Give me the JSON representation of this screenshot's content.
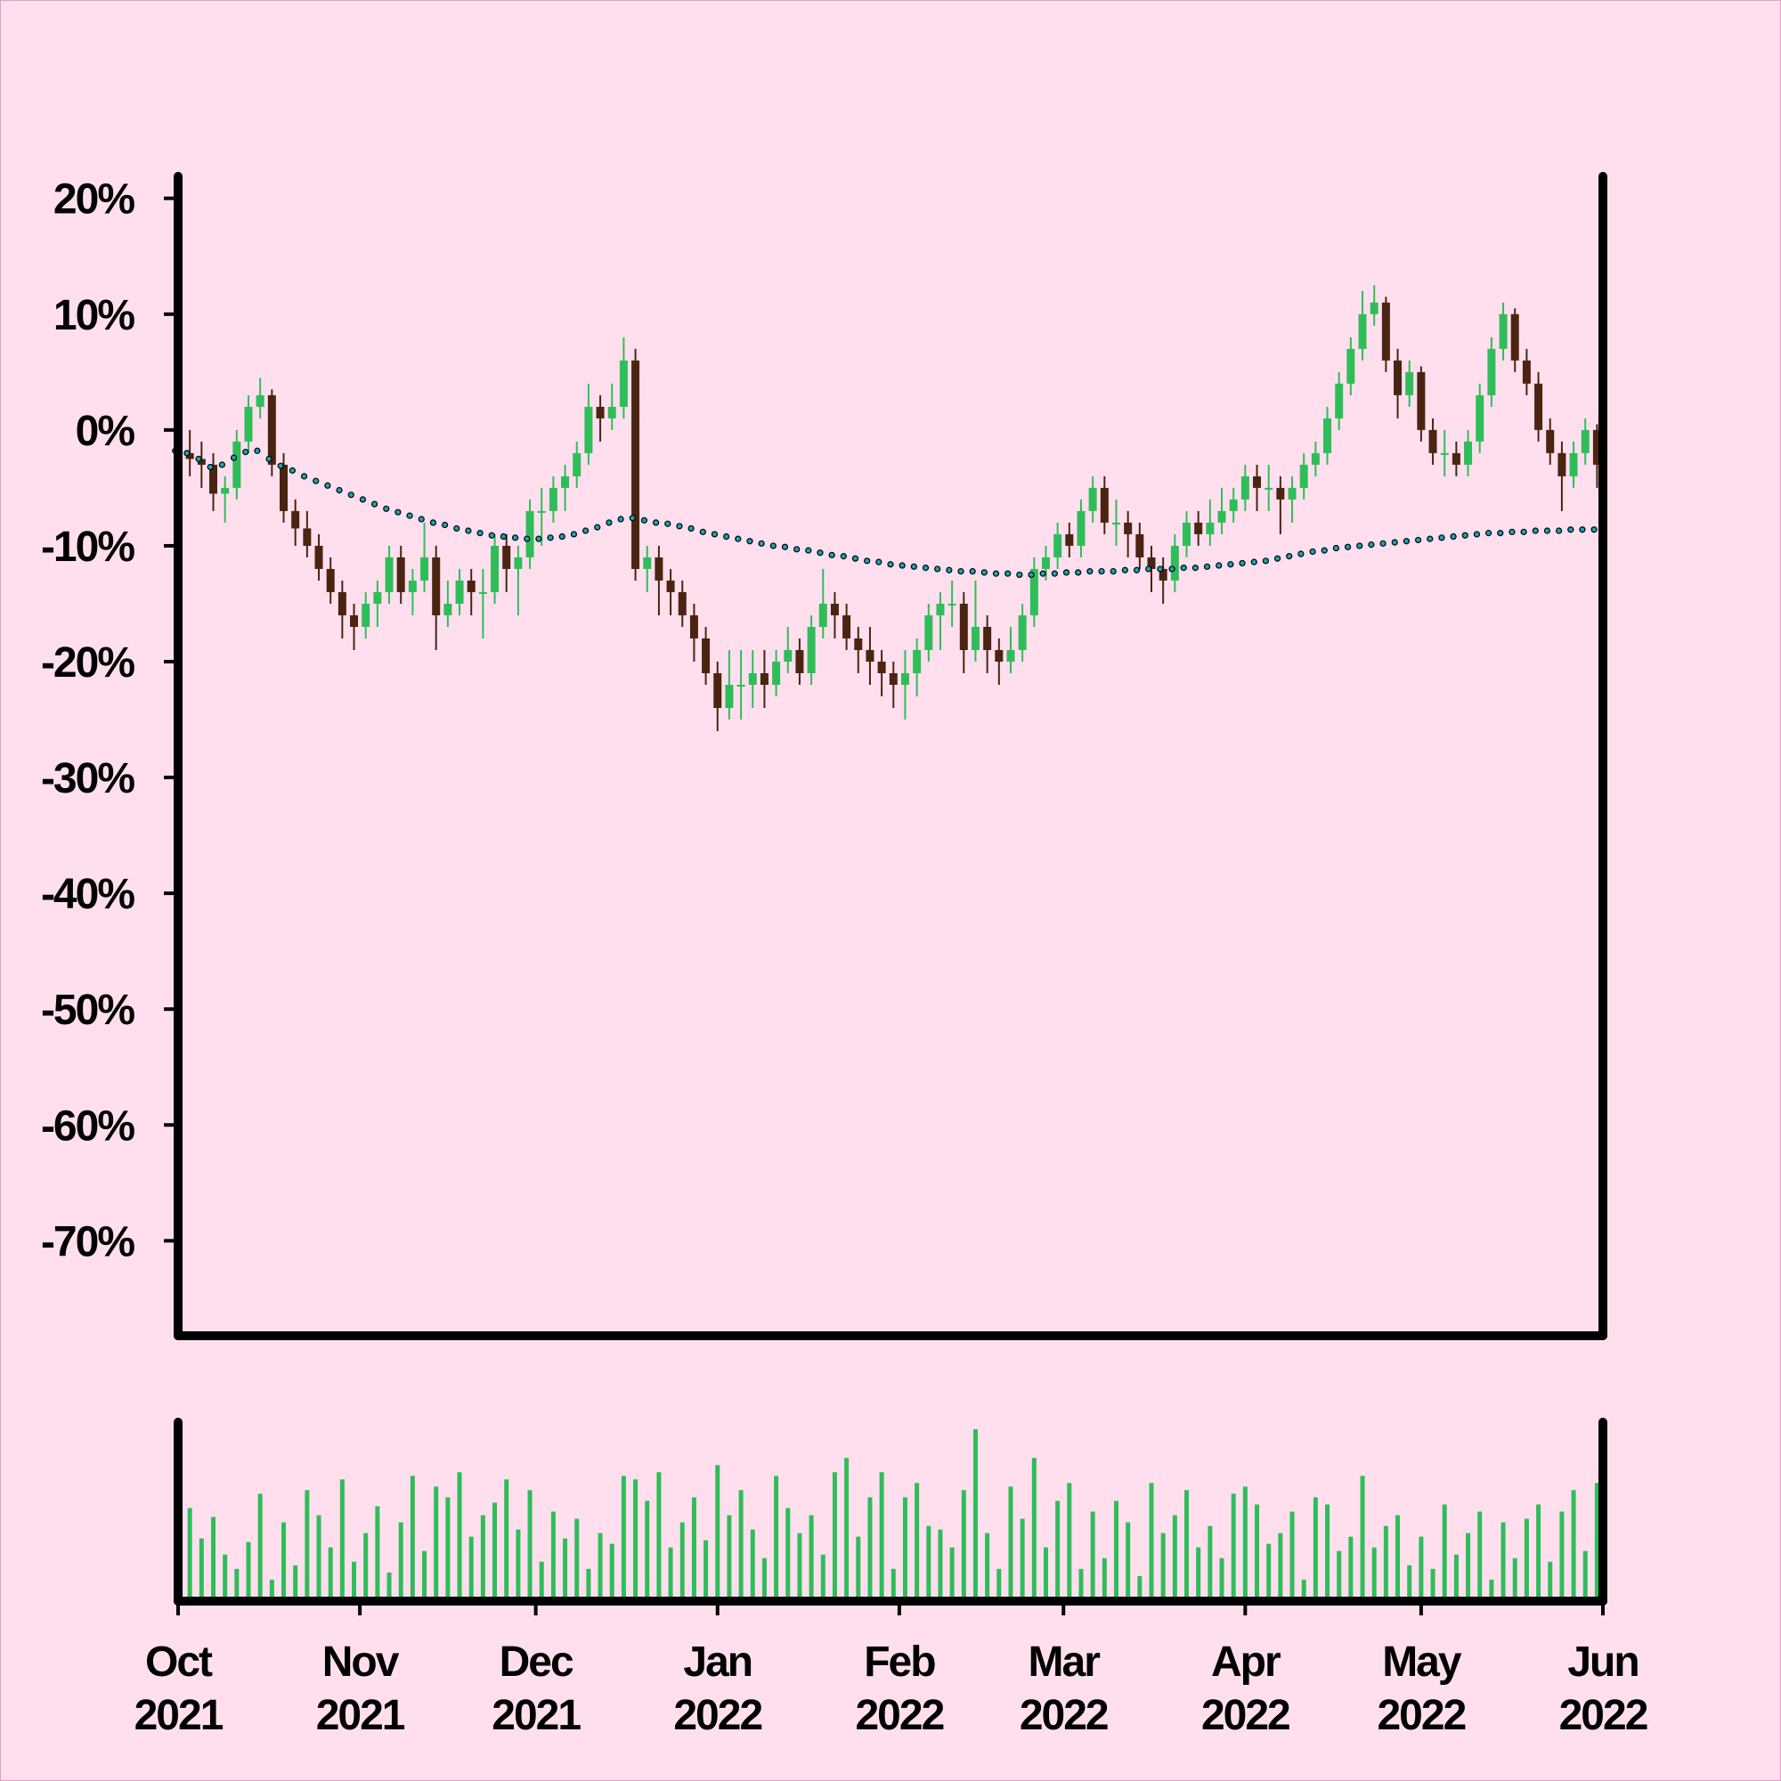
{
  "chart_data": {
    "type": "candlestick",
    "x": [
      0,
      2,
      4,
      6,
      8,
      10,
      12,
      14,
      16,
      18,
      20,
      22,
      24,
      26,
      28,
      30,
      32,
      34,
      36,
      38,
      40,
      42,
      44,
      46,
      48,
      50,
      52,
      54,
      56,
      58,
      60,
      62,
      64,
      66,
      68,
      70,
      72,
      74,
      76,
      78,
      80,
      82,
      84,
      86,
      88,
      90,
      92,
      94,
      96,
      98,
      100,
      102,
      104,
      106,
      108,
      110,
      112,
      114,
      116,
      118,
      120,
      122,
      124,
      126,
      128,
      130,
      132,
      134,
      136,
      138,
      140,
      142,
      144,
      146,
      148,
      150,
      152,
      154,
      156,
      158,
      160,
      162,
      164,
      166,
      168,
      170,
      172,
      174,
      176,
      178,
      180,
      182,
      184,
      186,
      188,
      190,
      192,
      194,
      196,
      198,
      200,
      202,
      204,
      206,
      208,
      210,
      212,
      214,
      216,
      218,
      220,
      222,
      224,
      226,
      228,
      230,
      232,
      234,
      236,
      238,
      240,
      242
    ],
    "open": [
      -1,
      -2,
      -2.5,
      -3,
      -5.5,
      -5,
      -1,
      2,
      3,
      -3,
      -7,
      -8.5,
      -10,
      -12,
      -14,
      -16,
      -17,
      -15,
      -14,
      -11,
      -14,
      -13,
      -11,
      -16,
      -15,
      -13,
      -14,
      -14,
      -10,
      -12,
      -11,
      -7,
      -7,
      -5,
      -4,
      -2,
      2,
      1,
      2,
      6,
      -12,
      -11,
      -13,
      -14,
      -16,
      -18,
      -21,
      -24,
      -22,
      -22,
      -21,
      -22,
      -20,
      -19,
      -21,
      -17,
      -15,
      -16,
      -18,
      -19,
      -20,
      -21,
      -22,
      -21,
      -19,
      -16,
      -15,
      -15,
      -19,
      -17,
      -19,
      -20,
      -19,
      -16,
      -12,
      -11,
      -9,
      -10,
      -7,
      -5,
      -8,
      -8,
      -9,
      -11,
      -12,
      -13,
      -10,
      -8,
      -9,
      -8,
      -7,
      -6,
      -4,
      -5,
      -5,
      -6,
      -5,
      -3,
      -2,
      1,
      4,
      7,
      10,
      11,
      6,
      3,
      5,
      0,
      -2,
      -2,
      -3,
      -1,
      3,
      7,
      10,
      6,
      4,
      0,
      -2,
      -4,
      -2,
      0
    ],
    "close": [
      -2,
      -2.5,
      -3,
      -5.5,
      -5,
      -1,
      2,
      3,
      -3,
      -7,
      -8.5,
      -10,
      -12,
      -14,
      -16,
      -17,
      -15,
      -14,
      -11,
      -14,
      -13,
      -11,
      -16,
      -15,
      -13,
      -14,
      -14,
      -10,
      -12,
      -11,
      -7,
      -7,
      -5,
      -4,
      -2,
      2,
      1,
      2,
      6,
      -12,
      -11,
      -13,
      -14,
      -16,
      -18,
      -21,
      -24,
      -22,
      -22,
      -21,
      -22,
      -20,
      -19,
      -21,
      -17,
      -15,
      -16,
      -18,
      -19,
      -20,
      -21,
      -22,
      -21,
      -19,
      -16,
      -15,
      -15,
      -19,
      -17,
      -19,
      -20,
      -19,
      -16,
      -12,
      -11,
      -9,
      -10,
      -7,
      -5,
      -8,
      -8,
      -9,
      -11,
      -12,
      -13,
      -10,
      -8,
      -9,
      -8,
      -7,
      -6,
      -4,
      -5,
      -5,
      -6,
      -5,
      -3,
      -2,
      1,
      4,
      7,
      10,
      11,
      6,
      3,
      5,
      0,
      -2,
      -2,
      -3,
      -1,
      3,
      7,
      10,
      6,
      4,
      0,
      -2,
      -4,
      -2,
      0,
      -3
    ],
    "high": [
      0,
      0,
      -1,
      -2,
      -4,
      0,
      3,
      4.5,
      3.5,
      -2,
      -6,
      -7,
      -9,
      -11,
      -13,
      -15,
      -14,
      -13,
      -10,
      -10,
      -12,
      -8,
      -10,
      -13,
      -12,
      -12,
      -12,
      -9,
      -9,
      -10,
      -6,
      -5,
      -4,
      -3,
      -1,
      4,
      3,
      4,
      8,
      7,
      -10,
      -10,
      -12,
      -13,
      -15,
      -17,
      -20,
      -19,
      -19,
      -19,
      -19,
      -19,
      -17,
      -18,
      -16,
      -12,
      -14,
      -15,
      -17,
      -17,
      -19,
      -20,
      -19,
      -18,
      -15,
      -14,
      -13,
      -14,
      -13,
      -16,
      -18,
      -17,
      -15,
      -11,
      -10,
      -8,
      -8,
      -6,
      -4,
      -4,
      -6,
      -7,
      -8,
      -10,
      -11,
      -9,
      -7,
      -7,
      -6,
      -5,
      -5,
      -3,
      -3,
      -3,
      -4,
      -4,
      -2,
      -1,
      2,
      5,
      8,
      12,
      12.5,
      11.5,
      7,
      6,
      5.5,
      1,
      0,
      -1,
      0,
      4,
      8,
      11,
      10.5,
      7,
      5,
      1,
      -1,
      -1,
      1,
      0.5
    ],
    "low": [
      -5,
      -4,
      -5,
      -7,
      -8,
      -6,
      -2,
      1,
      -4,
      -8,
      -10,
      -11,
      -13,
      -15,
      -18,
      -19,
      -18,
      -17,
      -15,
      -15,
      -16,
      -14,
      -19,
      -17,
      -16,
      -16,
      -18,
      -15,
      -14,
      -16,
      -12,
      -10,
      -8,
      -7,
      -5,
      -3,
      -1,
      0,
      1,
      -13,
      -14,
      -16,
      -16,
      -17,
      -20,
      -22,
      -26,
      -25,
      -25,
      -24,
      -24,
      -23,
      -21,
      -22,
      -22,
      -18,
      -18,
      -19,
      -21,
      -22,
      -23,
      -24,
      -25,
      -23,
      -20,
      -19,
      -17,
      -21,
      -20,
      -21,
      -22,
      -21,
      -20,
      -17,
      -13,
      -12,
      -11,
      -11,
      -8,
      -9,
      -10,
      -11,
      -12,
      -14,
      -15,
      -14,
      -11,
      -10,
      -10,
      -9,
      -8,
      -7,
      -7,
      -7,
      -9,
      -8,
      -6,
      -4,
      -3,
      0,
      3,
      6,
      9,
      5,
      1,
      2,
      -1,
      -3,
      -4,
      -4,
      -4,
      -2,
      2,
      6,
      5,
      3,
      -1,
      -3,
      -7,
      -5,
      -3,
      -5
    ],
    "up_color": "#2fbd5a",
    "down_color": "#4a2410",
    "ylim": [
      -78.2,
      21.9
    ],
    "yticks": [
      {
        "value": 20,
        "label": "20%"
      },
      {
        "value": 10,
        "label": "10%"
      },
      {
        "value": 0,
        "label": "0%"
      },
      {
        "value": -10,
        "label": "-10%"
      },
      {
        "value": -20,
        "label": "-20%"
      },
      {
        "value": -30,
        "label": "-30%"
      },
      {
        "value": -40,
        "label": "-40%"
      },
      {
        "value": -50,
        "label": "-50%"
      },
      {
        "value": -60,
        "label": "-60%"
      },
      {
        "value": -70,
        "label": "-70%"
      }
    ],
    "xlim": [
      0,
      243
    ],
    "xticks": [
      {
        "value": 0,
        "label": [
          "Oct",
          "2021"
        ]
      },
      {
        "value": 31,
        "label": [
          "Nov",
          "2021"
        ]
      },
      {
        "value": 61,
        "label": [
          "Dec",
          "2021"
        ]
      },
      {
        "value": 92,
        "label": [
          "Jan",
          "2022"
        ]
      },
      {
        "value": 123,
        "label": [
          "Feb",
          "2022"
        ]
      },
      {
        "value": 151,
        "label": [
          "Mar",
          "2022"
        ]
      },
      {
        "value": 182,
        "label": [
          "Apr",
          "2022"
        ]
      },
      {
        "value": 212,
        "label": [
          "May",
          "2022"
        ]
      },
      {
        "value": 243,
        "label": [
          "Jun",
          "2022"
        ]
      }
    ],
    "moving_average": {
      "color": "#1ba3b5",
      "values": [
        -1.8,
        -2,
        -2.5,
        -3.2,
        -3,
        -2.4,
        -1.9,
        -1.8,
        -2.5,
        -3.1,
        -3.5,
        -4,
        -4.4,
        -4.8,
        -5.2,
        -5.6,
        -6,
        -6.4,
        -6.8,
        -7.1,
        -7.4,
        -7.7,
        -8,
        -8.2,
        -8.5,
        -8.7,
        -8.9,
        -9.1,
        -9.2,
        -9.3,
        -9.4,
        -9.4,
        -9.3,
        -9.2,
        -9,
        -8.7,
        -8.4,
        -8,
        -7.7,
        -7.6,
        -7.8,
        -8,
        -8.1,
        -8.3,
        -8.5,
        -8.8,
        -9,
        -9.2,
        -9.4,
        -9.6,
        -9.8,
        -10,
        -10.1,
        -10.3,
        -10.4,
        -10.6,
        -10.8,
        -10.9,
        -11.1,
        -11.3,
        -11.4,
        -11.6,
        -11.7,
        -11.8,
        -11.9,
        -12,
        -12.1,
        -12.2,
        -12.2,
        -12.3,
        -12.4,
        -12.4,
        -12.5,
        -12.5,
        -12.4,
        -12.4,
        -12.3,
        -12.3,
        -12.2,
        -12.2,
        -12.2,
        -12.1,
        -12.1,
        -12,
        -12,
        -12,
        -11.9,
        -11.9,
        -11.8,
        -11.7,
        -11.6,
        -11.5,
        -11.4,
        -11.3,
        -11.1,
        -10.9,
        -10.7,
        -10.5,
        -10.4,
        -10.2,
        -10.1,
        -10,
        -9.9,
        -9.8,
        -9.7,
        -9.6,
        -9.5,
        -9.4,
        -9.3,
        -9.2,
        -9.1,
        -9,
        -8.9,
        -8.9,
        -8.8,
        -8.8,
        -8.7,
        -8.7,
        -8.7,
        -8.6,
        -8.6,
        -8.6
      ]
    },
    "volume": {
      "color": "#2fbd5a",
      "ylim": [
        0,
        100
      ],
      "values": [
        66,
        52,
        35,
        47,
        26,
        18,
        33,
        60,
        12,
        44,
        20,
        62,
        48,
        30,
        68,
        22,
        38,
        53,
        16,
        44,
        70,
        28,
        64,
        58,
        72,
        36,
        48,
        55,
        68,
        40,
        62,
        22,
        50,
        35,
        46,
        18,
        38,
        32,
        70,
        68,
        56,
        72,
        30,
        44,
        58,
        34,
        76,
        48,
        62,
        40,
        24,
        70,
        52,
        38,
        48,
        26,
        72,
        80,
        36,
        58,
        72,
        18,
        58,
        66,
        42,
        40,
        30,
        62,
        96,
        38,
        18,
        64,
        46,
        80,
        30,
        56,
        66,
        18,
        50,
        24,
        56,
        44,
        14,
        66,
        38,
        48,
        62,
        30,
        42,
        24,
        60,
        64,
        54,
        32,
        38,
        50,
        12,
        58,
        54,
        28,
        36,
        70,
        30,
        42,
        48,
        20,
        36,
        18,
        54,
        26,
        38,
        50,
        12,
        44,
        24,
        46,
        54,
        22,
        50,
        62,
        28,
        66
      ]
    }
  }
}
